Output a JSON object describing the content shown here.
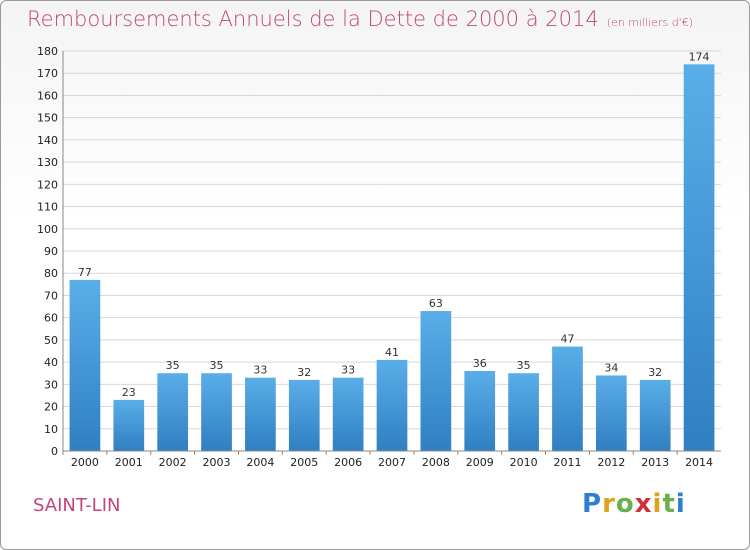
{
  "header": {
    "title": "Remboursements Annuels de la Dette de 2000 à 2014",
    "subtitle": "(en milliers d'€)"
  },
  "footer": {
    "city": "SAINT-LIN",
    "logo_text": "Proxiti"
  },
  "colors": {
    "title": "#c0467b",
    "bar_light": "#5aaee8",
    "bar_dark": "#2f7fc2",
    "grid": "#d8d8d8"
  },
  "chart_data": {
    "type": "bar",
    "categories": [
      "2000",
      "2001",
      "2002",
      "2003",
      "2004",
      "2005",
      "2006",
      "2007",
      "2008",
      "2009",
      "2010",
      "2011",
      "2012",
      "2013",
      "2014"
    ],
    "values": [
      77,
      23,
      35,
      35,
      33,
      32,
      33,
      41,
      63,
      36,
      35,
      47,
      34,
      32,
      174
    ],
    "title": "Remboursements Annuels de la Dette de 2000 à 2014",
    "xlabel": "",
    "ylabel": "",
    "ylim": [
      0,
      180
    ],
    "ytick_step": 10,
    "grid": true,
    "data_labels": true
  }
}
